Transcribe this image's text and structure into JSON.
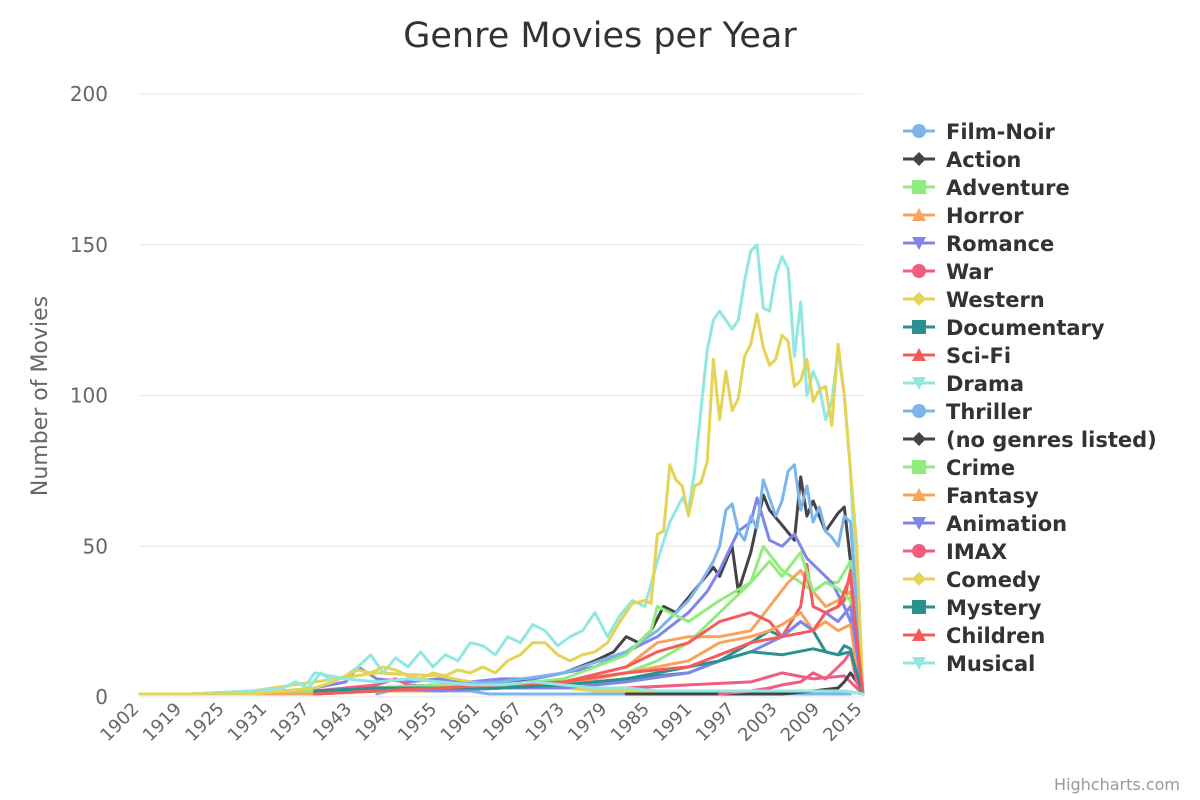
{
  "chart_data": {
    "type": "line",
    "title": "Genre Movies per Year",
    "ylabel": "Number of Movies",
    "xlabel": "",
    "ylim": [
      0,
      200
    ],
    "yticks": [
      0,
      50,
      100,
      150,
      200
    ],
    "xlim": [
      1902,
      2018
    ],
    "xticks": [
      1902,
      1919,
      1925,
      1931,
      1937,
      1943,
      1949,
      1955,
      1961,
      1967,
      1973,
      1979,
      1985,
      1991,
      1997,
      2003,
      2009,
      2015
    ],
    "grid": true,
    "legend_position": "right",
    "credits": "Highcharts.com",
    "series": [
      {
        "name": "Film-Noir",
        "color": "#7cb5ec",
        "marker": "circle",
        "x": [
          1940,
          1944,
          1946,
          1948,
          1950,
          1952,
          1955,
          1958,
          1962,
          1970,
          1980,
          1990,
          2000,
          2010,
          2016
        ],
        "y": [
          1,
          3,
          4,
          3,
          3,
          2,
          2,
          1,
          1,
          1,
          1,
          1,
          1,
          1,
          1
        ]
      },
      {
        "name": "Action",
        "color": "#434348",
        "marker": "diamond",
        "x": [
          1920,
          1930,
          1940,
          1950,
          1960,
          1965,
          1970,
          1975,
          1978,
          1980,
          1982,
          1984,
          1986,
          1988,
          1990,
          1992,
          1994,
          1995,
          1997,
          1998,
          2000,
          2002,
          2003,
          2005,
          2007,
          2008,
          2009,
          2010,
          2012,
          2014,
          2015,
          2016,
          2017,
          2018
        ],
        "y": [
          1,
          2,
          3,
          4,
          5,
          6,
          8,
          12,
          15,
          20,
          18,
          22,
          30,
          28,
          33,
          38,
          43,
          40,
          50,
          35,
          48,
          67,
          62,
          57,
          52,
          73,
          60,
          65,
          55,
          61,
          63,
          45,
          6,
          1
        ]
      },
      {
        "name": "Adventure",
        "color": "#90ed7d",
        "marker": "square",
        "x": [
          1920,
          1930,
          1940,
          1950,
          1960,
          1970,
          1980,
          1985,
          1990,
          1995,
          2000,
          2002,
          2005,
          2008,
          2010,
          2012,
          2014,
          2016,
          2017,
          2018
        ],
        "y": [
          1,
          2,
          3,
          3,
          4,
          5,
          8,
          12,
          18,
          28,
          38,
          50,
          42,
          38,
          35,
          38,
          38,
          45,
          10,
          1
        ]
      },
      {
        "name": "Horror",
        "color": "#f7a35c",
        "marker": "triangle",
        "x": [
          1930,
          1940,
          1950,
          1960,
          1970,
          1980,
          1985,
          1990,
          1995,
          2000,
          2003,
          2006,
          2008,
          2010,
          2012,
          2014,
          2016,
          2017,
          2018
        ],
        "y": [
          2,
          2,
          2,
          3,
          5,
          10,
          18,
          20,
          20,
          22,
          30,
          38,
          42,
          35,
          30,
          32,
          35,
          10,
          1
        ]
      },
      {
        "name": "Romance",
        "color": "#8085e9",
        "marker": "triangle-down",
        "x": [
          1920,
          1930,
          1935,
          1937,
          1940,
          1945,
          1950,
          1955,
          1960,
          1965,
          1970,
          1975,
          1980,
          1985,
          1990,
          1993,
          1995,
          1998,
          2000,
          2001,
          2003,
          2005,
          2007,
          2009,
          2011,
          2013,
          2015,
          2016,
          2017,
          2018
        ],
        "y": [
          1,
          3,
          5,
          10,
          6,
          5,
          6,
          5,
          6,
          6,
          8,
          10,
          15,
          20,
          28,
          35,
          42,
          55,
          58,
          66,
          52,
          50,
          54,
          46,
          42,
          38,
          30,
          25,
          10,
          1
        ]
      },
      {
        "name": "War",
        "color": "#f15c80",
        "marker": "circle",
        "x": [
          1915,
          1920,
          1930,
          1940,
          1943,
          1945,
          1950,
          1960,
          1970,
          1980,
          1990,
          2000,
          2005,
          2010,
          2015,
          2016,
          2018
        ],
        "y": [
          1,
          1,
          2,
          4,
          6,
          4,
          3,
          3,
          3,
          3,
          4,
          5,
          8,
          6,
          7,
          5,
          1
        ]
      },
      {
        "name": "Western",
        "color": "#e4d354",
        "marker": "diamond",
        "x": [
          1910,
          1920,
          1930,
          1940,
          1950,
          1955,
          1960,
          1965,
          1970,
          1975,
          1980,
          1990,
          2000,
          2005,
          2010,
          2015,
          2018
        ],
        "y": [
          1,
          2,
          5,
          8,
          7,
          5,
          4,
          3,
          3,
          2,
          2,
          2,
          2,
          2,
          2,
          2,
          1
        ]
      },
      {
        "name": "Documentary",
        "color": "#2b908f",
        "marker": "square",
        "x": [
          1930,
          1940,
          1950,
          1960,
          1970,
          1980,
          1990,
          1995,
          2000,
          2003,
          2005,
          2008,
          2010,
          2012,
          2014,
          2015,
          2016,
          2017,
          2018
        ],
        "y": [
          1,
          2,
          2,
          3,
          4,
          6,
          8,
          12,
          18,
          22,
          20,
          25,
          22,
          15,
          14,
          17,
          16,
          8,
          1
        ]
      },
      {
        "name": "Sci-Fi",
        "color": "#f45b5b",
        "marker": "triangle",
        "x": [
          1930,
          1940,
          1950,
          1960,
          1970,
          1980,
          1985,
          1990,
          1995,
          2000,
          2003,
          2005,
          2008,
          2009,
          2010,
          2012,
          2014,
          2015,
          2016,
          2017,
          2018
        ],
        "y": [
          1,
          2,
          3,
          4,
          5,
          10,
          15,
          18,
          25,
          28,
          25,
          20,
          30,
          44,
          30,
          28,
          30,
          32,
          42,
          20,
          1
        ]
      },
      {
        "name": "Drama",
        "color": "#91e8e1",
        "marker": "triangle-down",
        "x": [
          1902,
          1910,
          1920,
          1925,
          1927,
          1929,
          1931,
          1933,
          1935,
          1937,
          1939,
          1941,
          1943,
          1945,
          1947,
          1949,
          1951,
          1953,
          1955,
          1957,
          1959,
          1961,
          1963,
          1965,
          1967,
          1969,
          1971,
          1973,
          1975,
          1977,
          1979,
          1981,
          1983,
          1985,
          1987,
          1989,
          1990,
          1991,
          1992,
          1993,
          1994,
          1995,
          1996,
          1997,
          1998,
          1999,
          2000,
          2001,
          2002,
          2003,
          2004,
          2005,
          2006,
          2007,
          2008,
          2009,
          2010,
          2011,
          2012,
          2013,
          2014,
          2015,
          2016,
          2017,
          2018
        ],
        "y": [
          1,
          1,
          2,
          3,
          5,
          3,
          8,
          5,
          7,
          10,
          14,
          8,
          13,
          10,
          15,
          10,
          14,
          12,
          18,
          17,
          14,
          20,
          18,
          24,
          22,
          17,
          20,
          22,
          28,
          20,
          27,
          32,
          30,
          45,
          58,
          66,
          62,
          75,
          95,
          115,
          125,
          128,
          125,
          122,
          125,
          138,
          148,
          150,
          129,
          128,
          140,
          146,
          142,
          113,
          131,
          100,
          108,
          103,
          92,
          98,
          115,
          100,
          75,
          30,
          1
        ]
      },
      {
        "name": "Thriller",
        "color": "#7cb5ec",
        "marker": "circle",
        "x": [
          1930,
          1940,
          1950,
          1960,
          1970,
          1980,
          1985,
          1988,
          1990,
          1992,
          1994,
          1995,
          1996,
          1997,
          1998,
          1999,
          2000,
          2001,
          2002,
          2003,
          2004,
          2005,
          2006,
          2007,
          2008,
          2009,
          2010,
          2011,
          2012,
          2013,
          2014,
          2015,
          2016,
          2017,
          2018
        ],
        "y": [
          2,
          3,
          4,
          5,
          8,
          15,
          22,
          28,
          32,
          38,
          45,
          50,
          62,
          64,
          55,
          52,
          60,
          56,
          72,
          66,
          60,
          65,
          75,
          77,
          62,
          70,
          58,
          63,
          55,
          53,
          50,
          60,
          58,
          30,
          1
        ]
      },
      {
        "name": "(no genres listed)",
        "color": "#434348",
        "marker": "diamond",
        "x": [
          1980,
          1990,
          2000,
          2005,
          2010,
          2014,
          2015,
          2016,
          2017,
          2018
        ],
        "y": [
          1,
          1,
          1,
          1,
          2,
          3,
          5,
          8,
          5,
          1
        ]
      },
      {
        "name": "Crime",
        "color": "#90ed7d",
        "marker": "square",
        "x": [
          1920,
          1930,
          1940,
          1950,
          1960,
          1970,
          1975,
          1980,
          1984,
          1985,
          1990,
          1995,
          2000,
          2003,
          2005,
          2008,
          2010,
          2012,
          2014,
          2016,
          2017,
          2018
        ],
        "y": [
          1,
          2,
          3,
          4,
          4,
          6,
          10,
          14,
          22,
          30,
          25,
          32,
          38,
          45,
          40,
          48,
          35,
          38,
          36,
          32,
          15,
          1
        ]
      },
      {
        "name": "Fantasy",
        "color": "#f7a35c",
        "marker": "triangle",
        "x": [
          1920,
          1930,
          1940,
          1950,
          1960,
          1970,
          1980,
          1990,
          1995,
          2000,
          2003,
          2005,
          2008,
          2010,
          2012,
          2014,
          2016,
          2017,
          2018
        ],
        "y": [
          1,
          1,
          2,
          2,
          3,
          4,
          8,
          12,
          18,
          20,
          22,
          24,
          28,
          22,
          25,
          22,
          24,
          10,
          1
        ]
      },
      {
        "name": "Animation",
        "color": "#8085e9",
        "marker": "triangle-down",
        "x": [
          1930,
          1940,
          1950,
          1960,
          1970,
          1980,
          1990,
          1995,
          2000,
          2005,
          2008,
          2010,
          2012,
          2014,
          2016,
          2017,
          2018
        ],
        "y": [
          2,
          3,
          2,
          3,
          3,
          5,
          8,
          12,
          15,
          20,
          25,
          22,
          28,
          25,
          30,
          15,
          1
        ]
      },
      {
        "name": "IMAX",
        "color": "#f15c80",
        "marker": "circle",
        "x": [
          1995,
          2000,
          2003,
          2005,
          2008,
          2010,
          2012,
          2014,
          2015,
          2016,
          2017,
          2018
        ],
        "y": [
          1,
          2,
          3,
          4,
          5,
          8,
          6,
          10,
          12,
          15,
          5,
          1
        ]
      },
      {
        "name": "Comedy",
        "color": "#e4d354",
        "marker": "diamond",
        "x": [
          1902,
          1910,
          1920,
          1925,
          1930,
          1933,
          1935,
          1937,
          1939,
          1941,
          1943,
          1945,
          1947,
          1949,
          1951,
          1953,
          1955,
          1957,
          1959,
          1961,
          1963,
          1965,
          1967,
          1969,
          1971,
          1973,
          1975,
          1977,
          1979,
          1981,
          1983,
          1984,
          1985,
          1986,
          1987,
          1988,
          1989,
          1990,
          1991,
          1992,
          1993,
          1994,
          1995,
          1996,
          1997,
          1998,
          1999,
          2000,
          2001,
          2002,
          2003,
          2004,
          2005,
          2006,
          2007,
          2008,
          2009,
          2010,
          2011,
          2012,
          2013,
          2014,
          2015,
          2016,
          2017,
          2018
        ],
        "y": [
          1,
          1,
          1,
          2,
          3,
          5,
          7,
          9,
          8,
          10,
          9,
          7,
          6,
          8,
          7,
          9,
          8,
          10,
          8,
          12,
          14,
          18,
          18,
          14,
          12,
          14,
          15,
          18,
          25,
          31,
          32,
          31,
          54,
          55,
          77,
          72,
          70,
          60,
          70,
          71,
          78,
          112,
          92,
          108,
          95,
          99,
          113,
          117,
          127,
          116,
          110,
          112,
          120,
          118,
          103,
          105,
          112,
          98,
          102,
          103,
          90,
          117,
          100,
          75,
          50,
          1
        ]
      },
      {
        "name": "Mystery",
        "color": "#2b908f",
        "marker": "square",
        "x": [
          1930,
          1940,
          1950,
          1960,
          1970,
          1980,
          1990,
          1995,
          2000,
          2005,
          2010,
          2012,
          2014,
          2016,
          2017,
          2018
        ],
        "y": [
          2,
          3,
          3,
          3,
          4,
          6,
          10,
          12,
          15,
          14,
          16,
          15,
          14,
          15,
          8,
          1
        ]
      },
      {
        "name": "Children",
        "color": "#f45b5b",
        "marker": "triangle",
        "x": [
          1930,
          1940,
          1950,
          1960,
          1970,
          1980,
          1990,
          1995,
          2000,
          2005,
          2010,
          2012,
          2014,
          2016,
          2017,
          2018
        ],
        "y": [
          1,
          2,
          3,
          4,
          5,
          8,
          10,
          14,
          18,
          20,
          22,
          28,
          30,
          40,
          20,
          1
        ]
      },
      {
        "name": "Musical",
        "color": "#91e8e1",
        "marker": "triangle-down",
        "x": [
          1929,
          1930,
          1935,
          1940,
          1945,
          1950,
          1955,
          1960,
          1965,
          1970,
          1975,
          1980,
          1985,
          1990,
          1995,
          2000,
          2005,
          2010,
          2015,
          2018
        ],
        "y": [
          5,
          8,
          6,
          5,
          6,
          5,
          4,
          4,
          5,
          4,
          3,
          3,
          2,
          2,
          2,
          2,
          2,
          2,
          2,
          1
        ]
      }
    ]
  }
}
